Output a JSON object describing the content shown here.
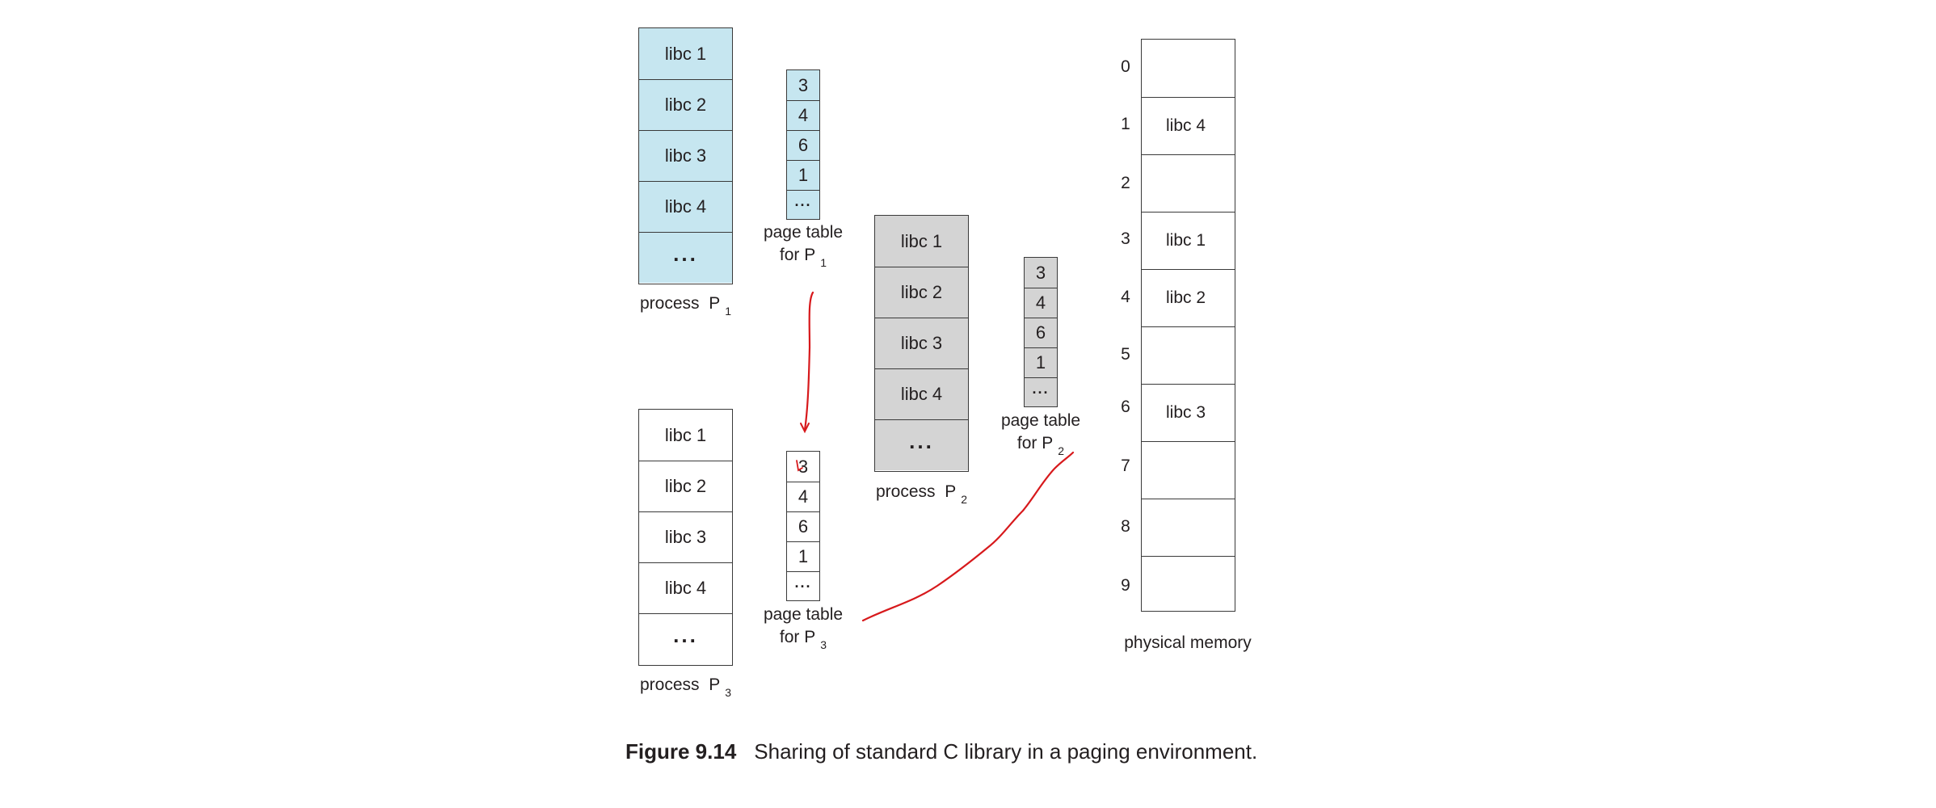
{
  "process_p1": {
    "cells": [
      "libc 1",
      "libc 2",
      "libc 3",
      "libc 4",
      "..."
    ],
    "label": "process",
    "label_letter": "P",
    "label_sub": "1"
  },
  "process_p2": {
    "cells": [
      "libc 1",
      "libc 2",
      "libc 3",
      "libc 4",
      "..."
    ],
    "label": "process",
    "label_letter": "P",
    "label_sub": "2"
  },
  "process_p3": {
    "cells": [
      "libc 1",
      "libc 2",
      "libc 3",
      "libc 4",
      "..."
    ],
    "label": "process",
    "label_letter": "P",
    "label_sub": "3"
  },
  "page_table_p1": {
    "entries": [
      "3",
      "4",
      "6",
      "1",
      "..."
    ],
    "label_line1": "page table",
    "label_line2": "for P",
    "label_sub": "1"
  },
  "page_table_p2": {
    "entries": [
      "3",
      "4",
      "6",
      "1",
      "..."
    ],
    "label_line1": "page table",
    "label_line2": "for P",
    "label_sub": "2"
  },
  "page_table_p3": {
    "entries": [
      "3",
      "4",
      "6",
      "1",
      "..."
    ],
    "label_line1": "page table",
    "label_line2": "for P",
    "label_sub": "3"
  },
  "physical_memory": {
    "frame_numbers": [
      "0",
      "1",
      "2",
      "3",
      "4",
      "5",
      "6",
      "7",
      "8",
      "9"
    ],
    "frames": [
      "",
      "libc 4",
      "",
      "libc 1",
      "libc 2",
      "",
      "libc 3",
      "",
      "",
      ""
    ],
    "label": "physical memory"
  },
  "caption": {
    "figure": "Figure 9.14",
    "text": "Sharing of standard C library in a paging environment."
  },
  "colors": {
    "p1_fill": "#c6e6f0",
    "p2_fill": "#d4d4d4",
    "p3_fill": "#ffffff",
    "annotation_red": "#d7191c"
  }
}
